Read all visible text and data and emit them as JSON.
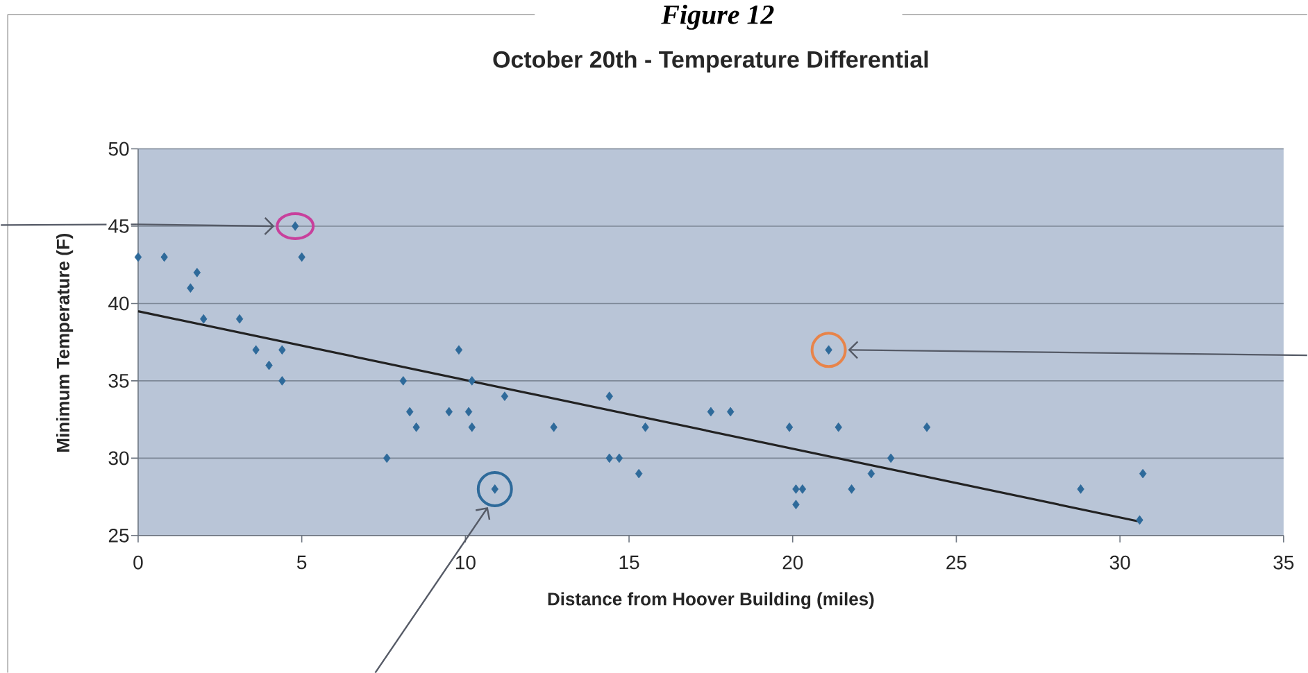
{
  "chart_data": {
    "type": "scatter",
    "title": "October 20th - Temperature Differential",
    "xlabel": "Distance from Hoover Building (miles)",
    "ylabel": "Minimum Temperature (F)",
    "annotations": [
      "Figure 12"
    ],
    "xlim": [
      0,
      35
    ],
    "ylim": [
      25,
      50
    ],
    "xticks": [
      0,
      5,
      10,
      15,
      20,
      25,
      30,
      35
    ],
    "yticks": [
      25,
      30,
      35,
      40,
      45,
      50
    ],
    "grid": "y",
    "series": [
      {
        "type": "scatter",
        "marker": "diamond",
        "color": "#2e6a9a",
        "x": [
          0,
          0.8,
          1.6,
          1.8,
          2,
          3.1,
          3.6,
          4,
          4.4,
          4.4,
          4.8,
          5,
          7.6,
          8.1,
          8.3,
          8.5,
          9.5,
          9.8,
          10.1,
          10.2,
          10.2,
          10.9,
          11.2,
          12.7,
          14.4,
          14.4,
          14.7,
          15.3,
          15.5,
          17.5,
          18.1,
          19.9,
          20.1,
          20.3,
          20.1,
          21.1,
          21.4,
          21.8,
          22.4,
          23,
          24.1,
          28.8,
          30.6,
          30.7
        ],
        "values": [
          43,
          43,
          41,
          42,
          39,
          39,
          37,
          36,
          37,
          35,
          45,
          43,
          30,
          35,
          33,
          32,
          33,
          37,
          33,
          32,
          35,
          28,
          34,
          32,
          34,
          30,
          30,
          29,
          32,
          33,
          33,
          32,
          28,
          28,
          27,
          37,
          32,
          28,
          29,
          30,
          32,
          28,
          26,
          29
        ]
      },
      {
        "type": "line",
        "color": "#222222",
        "x": [
          0,
          30.6
        ],
        "values": [
          39.5,
          25.9
        ]
      }
    ]
  }
}
